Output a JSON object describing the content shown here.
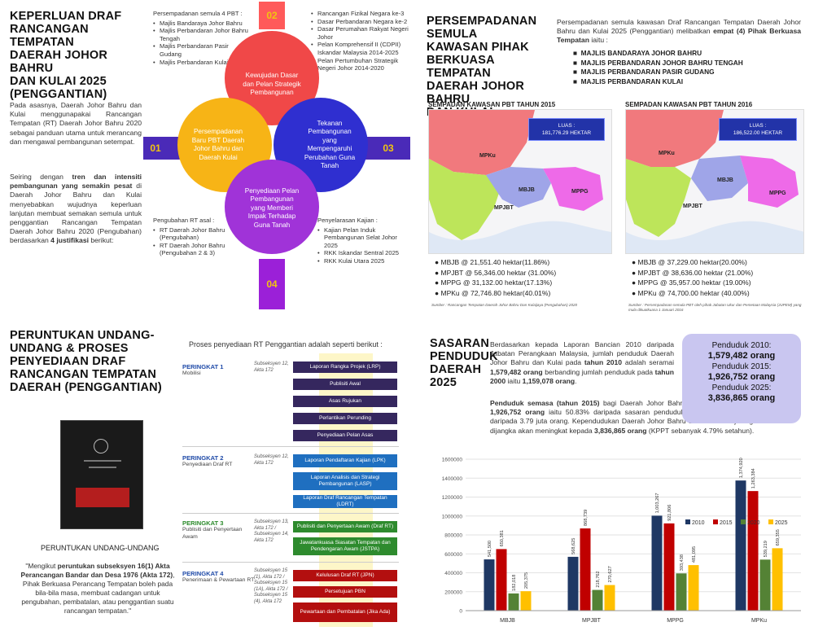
{
  "section1": {
    "title": [
      "KEPERLUAN DRAF",
      "RANCANGAN TEMPATAN",
      "DAERAH JOHOR BAHRU",
      "DAN KULAI 2025",
      "(PENGGANTIAN)"
    ],
    "para1": "Pada asasnya, Daerah Johor Bahru dan Kulai menggunapakai Rancangan Tempatan (RT) Daerah Johor Bahru 2020 sebagai panduan utama untuk merancang dan mengawal pembangunan setempat.",
    "para2_a": "Seiring dengan ",
    "para2_b": "tren dan intensiti pembangunan yang semakin pesat",
    "para2_c": " di Daerah Johor Bahru dan Kulai menyebabkan wujudnya keperluan lanjutan membuat semakan semula untuk penggantian Rancangan Tempatan Daerah Johor Bahru 2020 (Pengubahan) berdasarkan ",
    "para2_d": "4 justifikasi",
    "para2_e": " berikut:",
    "block_tl_title": "Persempadanan semula 4 PBT :",
    "block_tl_items": [
      "Majlis Bandaraya Johor Bahru",
      "Majlis Perbandaran Johor Bahru Tengah",
      "Majlis Perbandaran Pasir Gudang",
      "Majlis Perbandaran Kulai"
    ],
    "block_tr_items": [
      "Rancangan Fizikal Negara ke-3",
      "Dasar Perbandaran Negara ke-2",
      "Dasar Perumahan Rakyat Negeri Johor",
      "Pelan Komprehensif II (CDPII) Iskandar Malaysia 2014-2025",
      "Pelan Pertumbuhan Strategik Negeri Johor 2014-2020"
    ],
    "block_bl_title": "Pengubahan RT asal :",
    "block_bl_items": [
      "RT Daerah Johor Bahru (Pengubahan)",
      "RT Daerah Johor Bahru (Pengubahan 2 & 3)"
    ],
    "block_br_title": "Penyelarasan Kajian :",
    "block_br_items": [
      "Kajian Pelan Induk Pembangunan Selat Johor 2025",
      "RKK Iskandar Sentral 2025",
      "RKK Kulai Utara 2025"
    ],
    "tags": [
      "01",
      "02",
      "03",
      "04"
    ],
    "circle_top": "Kewujudan Dasar dan Pelan Strategik Pembangunan",
    "circle_left": "Persempadanan Baru PBT Daerah Johor Bahru dan Daerah Kulai",
    "circle_right": "Tekanan Pembangunan yang Mempengaruhi Perubahan Guna Tanah",
    "circle_bottom": "Penyediaan Pelan Pembangunan yang Memberi Impak Terhadap Guna Tanah"
  },
  "section2": {
    "title": [
      "PERSEMPADANAN SEMULA",
      "KAWASAN PIHAK",
      "BERKUASA TEMPATAN",
      "DAERAH JOHOR BAHRU",
      "DAN KULAI"
    ],
    "intro_a": "Persempadanan semula kawasan Draf Rancangan Tempatan Daerah Johor Bahru dan Kulai 2025 (Penggantian) melibatkan ",
    "intro_b": "empat (4) Pihak Berkuasa Tempatan",
    "intro_c": " iaitu :",
    "pbt_list": [
      "MAJLIS BANDARAYA JOHOR BAHRU",
      "MAJLIS PERBANDARAN JOHOR BAHRU TENGAH",
      "MAJLIS PERBANDARAN PASIR GUDANG",
      "MAJLIS PERBANDARAN KULAI"
    ],
    "map1_title": "SEMPADAN KAWASAN PBT TAHUN 2015",
    "map2_title": "SEMPADAN KAWASAN PBT TAHUN 2016",
    "luas_label": "LUAS :",
    "map1_luas": "181,776.29 HEKTAR",
    "map2_luas": "186,522.00 HEKTAR",
    "map_labels": [
      "MPKu",
      "MPJBT",
      "MBJB",
      "MPPG"
    ],
    "map1_legend": [
      "MBJB @ 21,551.40 hektar(11.86%)",
      "MPJBT @ 56,346.00 hektar (31.00%)",
      "MPPG @ 31,132.00 hektar(17.13%)",
      "MPKu @ 72,746.80 hektar(40.01%)"
    ],
    "map2_legend": [
      "MBJB @ 37,229.00 hektar(20.00%)",
      "MPJBT @ 38,636.00 hektar (21.00%)",
      "MPPG @ 35,957.00 hektar (19.00%)",
      "MPKu @ 74,700.00 hektar (40.00%)"
    ],
    "source1": "Sumber : Rancangan Tempatan Daerah Johor Bahru Dan Kulaijaya (Pengubahan) 2020",
    "source2": "Sumber : Persempadanan semula PBT oleh pihak Jabatan Ukur dan Pemetaan Malaysia (JUPEM) yang mula dikuatkuasa 1 Januari 2016"
  },
  "section3": {
    "title": [
      "PERUNTUKAN UNDANG-",
      "UNDANG & PROSES",
      "PENYEDIAAN DRAF",
      "RANCANGAN TEMPATAN",
      "DAERAH (PENGGANTIAN)"
    ],
    "process_intro": "Proses penyediaan RT Penggantian adalah seperti berikut :",
    "book_caption": "PERUNTUKAN UNDANG-UNDANG",
    "quote_a": "\"Mengikut ",
    "quote_b": "peruntukan subseksyen 16(1) Akta Perancangan Bandar dan Desa 1976 (Akta 172)",
    "quote_c": ", Pihak Berkuasa Perancang Tempatan boleh pada bila-bila masa, membuat cadangan untuk pengubahan, pembatalan, atau penggantian suatu rancangan tempatan.\"",
    "stages": [
      {
        "title": "PERINGKAT 1",
        "sub": "Mobilisi",
        "law": "Subseksyen 12, Akta 172",
        "boxes": [
          "Laporan Rangka Projek (LRP)",
          "Publisiti Awal",
          "Asas Rujukan",
          "Perlantikan Perunding",
          "Penyediaan Pelan Asas"
        ]
      },
      {
        "title": "PERINGKAT 2",
        "sub": "Penyediaan Draf RT",
        "law": "Subseksyen 12, Akta 172",
        "boxes": [
          "Laporan Pendaftaran Kajian (LPK)",
          "Laporan Analisis dan Strategi Pembangunan (LASP)",
          "Laporan Draf Rancangan Tempatan (LDRT)"
        ]
      },
      {
        "title": "PERINGKAT 3",
        "sub": "Publisiti dan Penyertaan Awam",
        "law": "Subseksyen 13, Akta 172 / Subseksyen 14, Akta 172",
        "boxes": [
          "Publisiti dan Penyertaan Awam (Draf RT)",
          "Jawatankuasa Siasatan Tempatan dan Pendengaran Awam (JSTPA)"
        ]
      },
      {
        "title": "PERINGKAT 4",
        "sub": "Penerimaan & Pewartaan RT",
        "law": "Subseksyen 15 (1), Akta 172 / Subseksyen 15 (1A), Akta 172 / Subseksyen 15 (4), Akta 172",
        "boxes": [
          "Kelulusan Draf RT (JPN)",
          "Persetujuan PBN",
          "Pewartaan dan Pembatalan (Jika Ada)"
        ]
      }
    ]
  },
  "section4": {
    "title": [
      "SASARAN",
      "PENDUDUK",
      "DAERAH",
      "2025"
    ],
    "para1_a": "Berdasarkan kepada Laporan Bancian 2010 daripada Jabatan Perangkaan Malaysia, jumlah penduduk Daerah Johor Bahru dan Kulai pada ",
    "para1_b": "tahun 2010",
    "para1_c": " adalah seramai ",
    "para1_d": "1,579,482 orang",
    "para1_e": " berbanding jumlah penduduk pada ",
    "para1_f": "tahun 2000",
    "para1_g": " iaitu ",
    "para1_h": "1,159,078 orang",
    "para1_i": ".",
    "para2_a": "Penduduk semasa (tahun 2015)",
    "para2_b": " bagi Daerah Johor Bahru dan Kulai dianggarkan seramai ",
    "para2_c": "1,926,752 orang",
    "para2_d": " iaitu 50.83% daripada sasaran penduduk Negeri Johor 2015 yang terdiri daripada 3.79 juta orang. Kependudukan Daerah Johor Bahru dan Kulai menjelang tahun 2025 dijangka akan meningkat kepada ",
    "para2_e": "3,836,865 orang",
    "para2_f": " (KPPT sebanyak 4.79% setahun).",
    "pop_box": [
      {
        "label": "Penduduk 2010:",
        "value": "1,579,482 orang"
      },
      {
        "label": "Penduduk 2015:",
        "value": "1,926,752 orang"
      },
      {
        "label": "Penduduk 2025:",
        "value": "3,836,865 orang"
      }
    ]
  },
  "chart_data": {
    "type": "bar",
    "categories": [
      "MBJB",
      "MPJBT",
      "MPPG",
      "MPKu"
    ],
    "series": [
      {
        "name": "2010",
        "values": [
          541500,
          568625,
          1003267,
          1374920
        ],
        "color": "#1f3864"
      },
      {
        "name": "2015",
        "values": [
          650381,
          868739,
          921806,
          1263384
        ],
        "color": "#c00000"
      },
      {
        "name": "2020",
        "values": [
          182018,
          218762,
          393438,
          539219
        ],
        "color": "#548235"
      },
      {
        "name": "2025",
        "values": [
          205375,
          270627,
          481095,
          659355
        ],
        "color": "#ffc000"
      }
    ],
    "display_labels": [
      [
        "541,500",
        "568,625",
        "1,003,267",
        "1,374,920"
      ],
      [
        "650,381",
        "868,739",
        "921,806",
        "1,263,384"
      ],
      [
        "182,018",
        "218,762",
        "393,438",
        "539,219"
      ],
      [
        "205,375",
        "270,627",
        "481,095",
        "659,355"
      ]
    ],
    "yticks": [
      "0",
      "200000",
      "400000",
      "600000",
      "800000",
      "1000000",
      "1200000",
      "1400000",
      "1600000"
    ],
    "ylim": [
      0,
      1600000
    ],
    "legend_position": "top-right",
    "grid": true
  }
}
